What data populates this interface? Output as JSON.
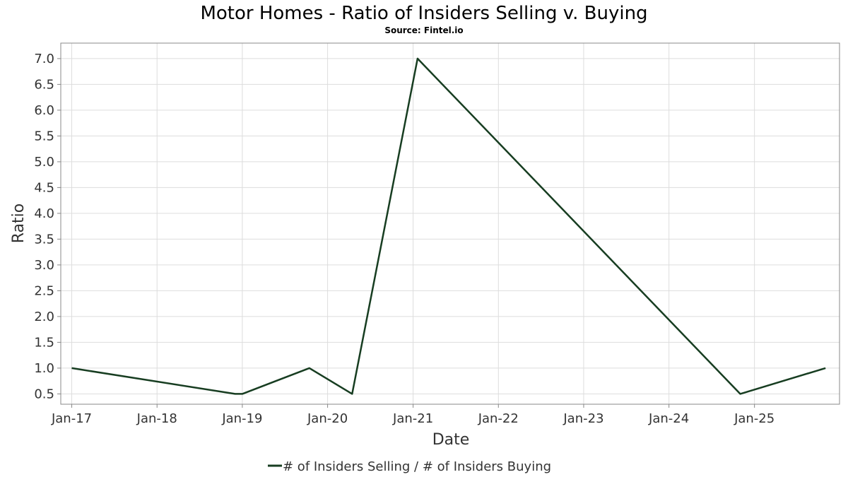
{
  "chart_data": {
    "type": "line",
    "title": "Motor Homes - Ratio of Insiders Selling v. Buying",
    "subtitle": "Source: Fintel.io",
    "xlabel": "Date",
    "ylabel": "Ratio",
    "x_ticks": [
      "Jan-17",
      "Jan-18",
      "Jan-19",
      "Jan-20",
      "Jan-21",
      "Jan-22",
      "Jan-23",
      "Jan-24",
      "Jan-25"
    ],
    "y_ticks": [
      "0.5",
      "1.0",
      "1.5",
      "2.0",
      "2.5",
      "3.0",
      "3.5",
      "4.0",
      "4.5",
      "5.0",
      "5.5",
      "6.0",
      "6.5",
      "7.0"
    ],
    "ylim": [
      0.3,
      7.3
    ],
    "xlim": [
      "2016-11-15",
      "2025-12-31"
    ],
    "grid": true,
    "legend_position": "bottom-center",
    "series": [
      {
        "name": "# of Insiders Selling / # of Insiders Buying",
        "color": "#173d21",
        "points": [
          {
            "x": "2017-01-01",
            "y": 1.0
          },
          {
            "x": "2018-12-01",
            "y": 0.5
          },
          {
            "x": "2019-01-01",
            "y": 0.5
          },
          {
            "x": "2019-10-15",
            "y": 1.0
          },
          {
            "x": "2020-04-15",
            "y": 0.5
          },
          {
            "x": "2021-01-20",
            "y": 7.0
          },
          {
            "x": "2024-11-01",
            "y": 0.5
          },
          {
            "x": "2025-11-01",
            "y": 1.0
          }
        ]
      }
    ]
  }
}
